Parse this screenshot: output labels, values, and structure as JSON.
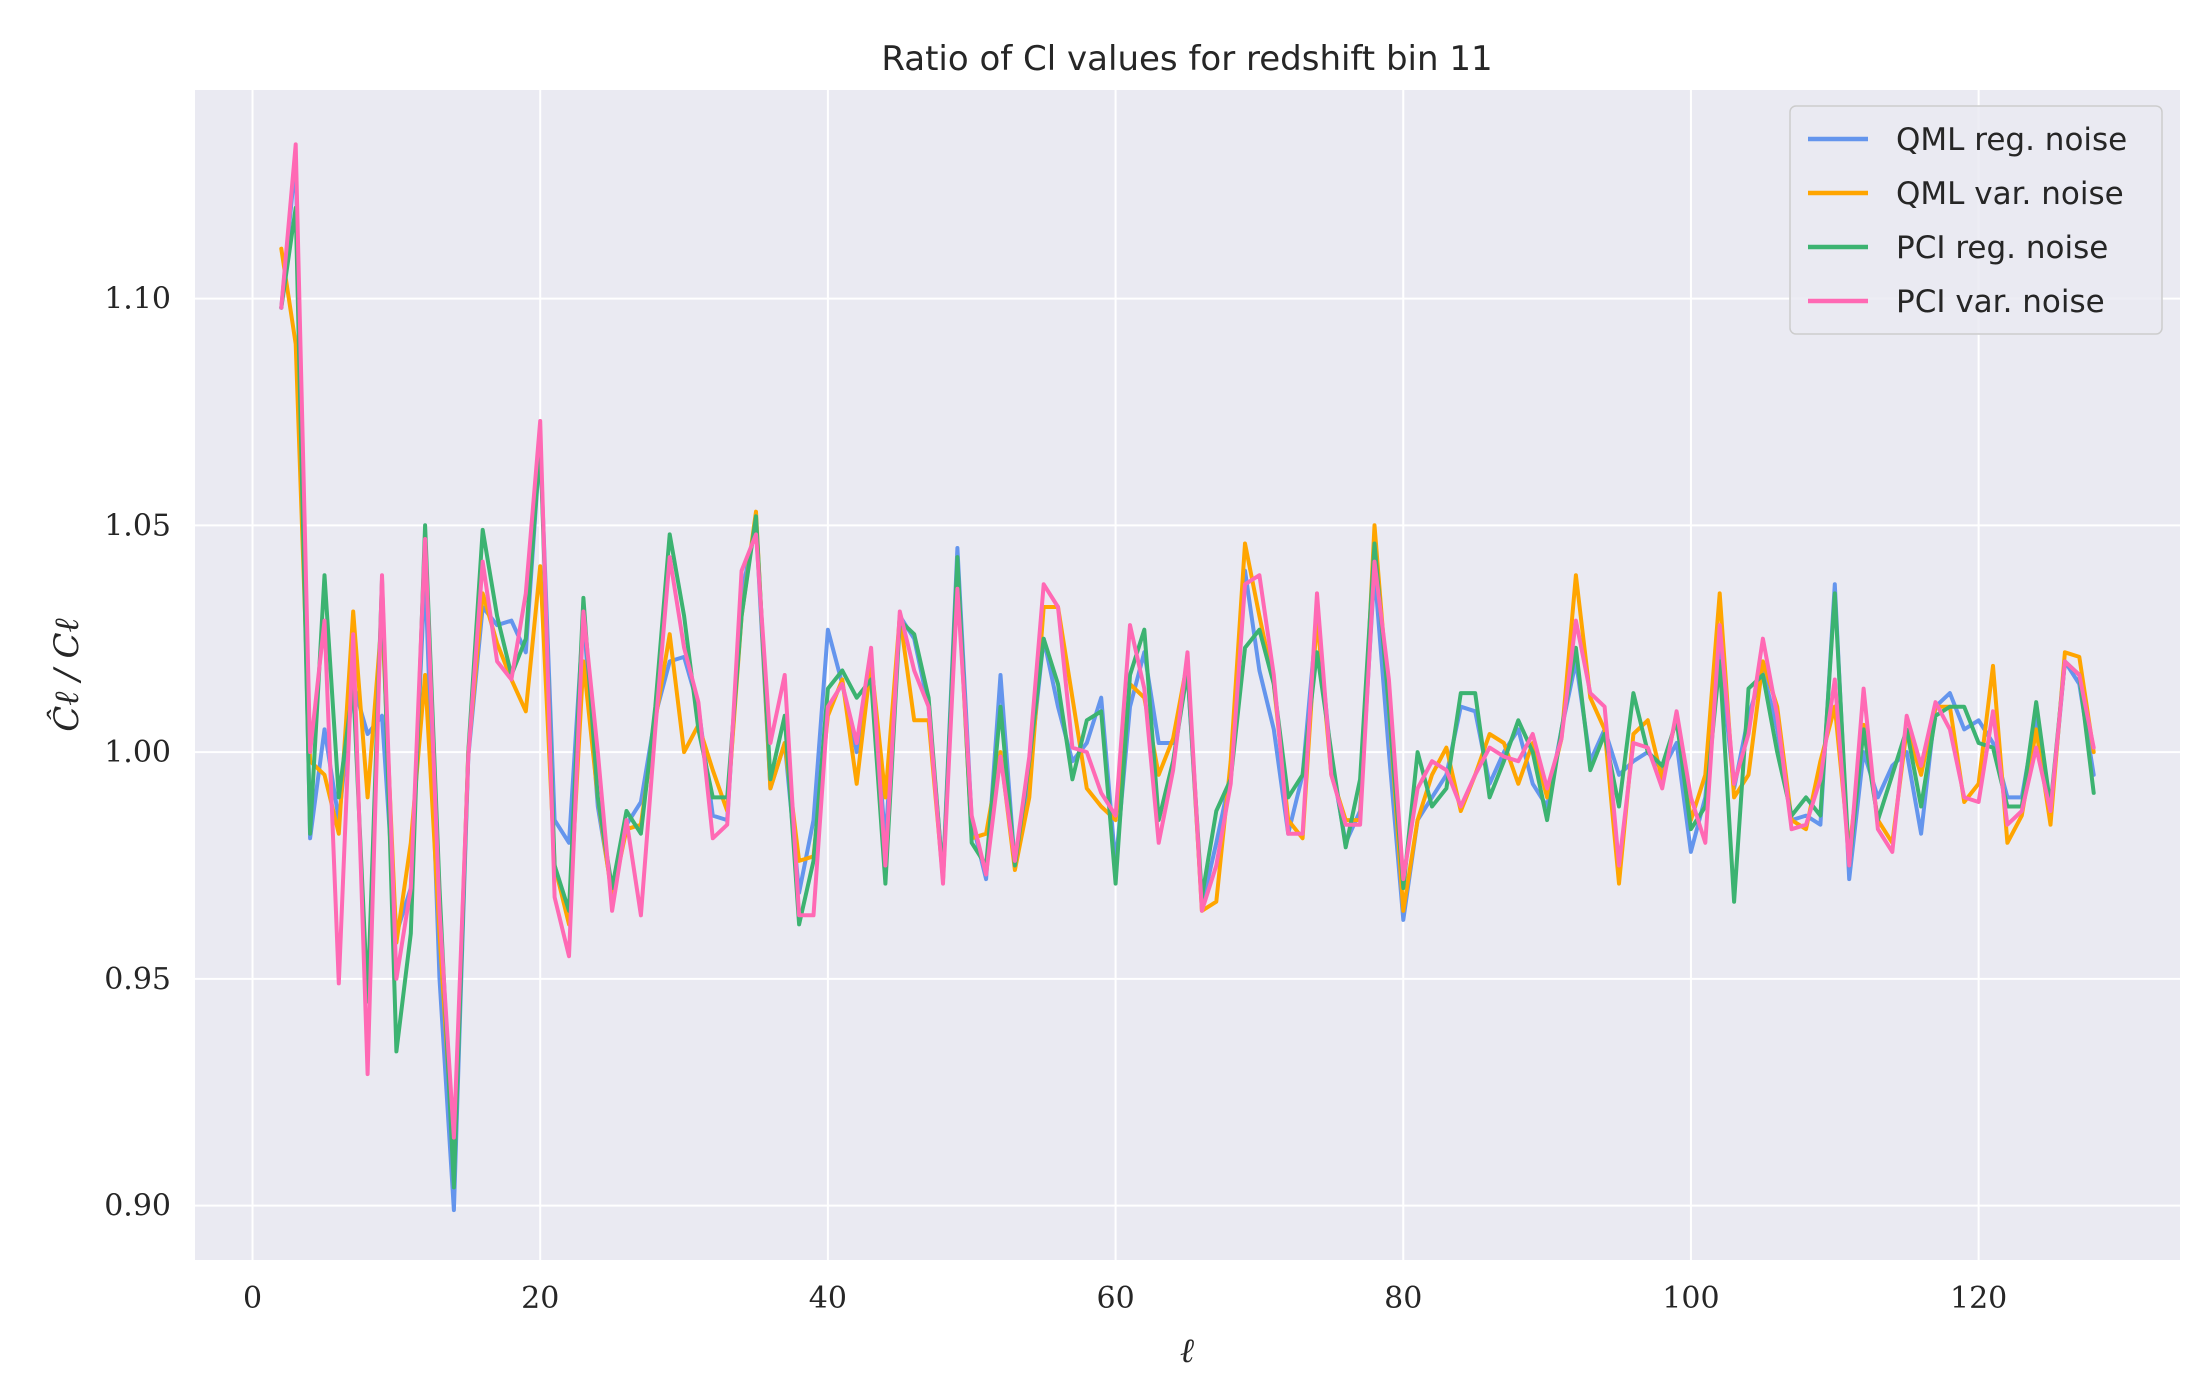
{
  "chart_data": {
    "type": "line",
    "title": "Ratio of Cl values for redshift bin 11",
    "xlabel": "ℓ",
    "ylabel": "Ĉℓ / Cℓ",
    "xlim": [
      -4,
      134
    ],
    "ylim": [
      0.888,
      1.146
    ],
    "xticks": [
      0,
      20,
      40,
      60,
      80,
      100,
      120
    ],
    "xtick_labels": [
      "0",
      "20",
      "40",
      "60",
      "80",
      "100",
      "120"
    ],
    "yticks": [
      0.9,
      0.95,
      1.0,
      1.05,
      1.1
    ],
    "ytick_labels": [
      "0.90",
      "0.95",
      "1.00",
      "1.05",
      "1.10"
    ],
    "grid": true,
    "legend_position": "top-right",
    "background_color": "#eaeaf2",
    "x": [
      2,
      3,
      4,
      5,
      6,
      7,
      8,
      9,
      10,
      11,
      12,
      13,
      14,
      15,
      16,
      17,
      18,
      19,
      20,
      21,
      22,
      23,
      24,
      25,
      26,
      27,
      28,
      29,
      30,
      31,
      32,
      33,
      34,
      35,
      36,
      37,
      38,
      39,
      40,
      41,
      42,
      43,
      44,
      45,
      46,
      47,
      48,
      49,
      50,
      51,
      52,
      53,
      54,
      55,
      56,
      57,
      58,
      59,
      60,
      61,
      62,
      63,
      64,
      65,
      66,
      67,
      68,
      69,
      70,
      71,
      72,
      73,
      74,
      75,
      76,
      77,
      78,
      79,
      80,
      81,
      82,
      83,
      84,
      85,
      86,
      87,
      88,
      89,
      90,
      91,
      92,
      93,
      94,
      95,
      96,
      97,
      98,
      99,
      100,
      101,
      102,
      103,
      104,
      105,
      106,
      107,
      108,
      109,
      110,
      111,
      112,
      113,
      114,
      115,
      116,
      117,
      118,
      119,
      120,
      121,
      122,
      123,
      124,
      125,
      126,
      127,
      128
    ],
    "series": [
      {
        "name": "QML reg. noise",
        "color": "#6495ed",
        "values": [
          1.098,
          1.131,
          0.981,
          1.005,
          0.985,
          1.015,
          1.004,
          1.008,
          0.96,
          0.97,
          1.04,
          0.95,
          0.899,
          0.999,
          1.032,
          1.028,
          1.029,
          1.022,
          1.068,
          0.985,
          0.98,
          1.03,
          0.988,
          0.969,
          0.984,
          0.989,
          1.008,
          1.02,
          1.021,
          1.01,
          0.986,
          0.985,
          1.035,
          1.05,
          0.992,
          1.002,
          0.969,
          0.985,
          1.027,
          1.015,
          1.0,
          1.02,
          0.98,
          1.03,
          1.025,
          1.01,
          0.973,
          1.045,
          0.985,
          0.972,
          1.017,
          0.975,
          0.995,
          1.025,
          1.01,
          0.998,
          1.002,
          1.012,
          0.975,
          1.01,
          1.022,
          1.002,
          1.002,
          1.018,
          0.966,
          0.98,
          0.995,
          1.04,
          1.018,
          1.005,
          0.982,
          0.995,
          1.03,
          0.998,
          0.98,
          0.987,
          1.04,
          1.0,
          0.963,
          0.985,
          0.99,
          0.995,
          1.01,
          1.009,
          0.993,
          1.0,
          1.005,
          0.993,
          0.988,
          1.005,
          1.02,
          0.998,
          1.005,
          0.995,
          0.998,
          1.0,
          0.996,
          1.002,
          0.978,
          0.99,
          1.022,
          0.992,
          1.008,
          1.018,
          1.005,
          0.985,
          0.986,
          0.984,
          1.037,
          0.972,
          1.0,
          0.99,
          0.997,
          1.0,
          0.982,
          1.01,
          1.013,
          1.005,
          1.007,
          1.002,
          0.99,
          0.99,
          1.008,
          0.986,
          1.02,
          1.015,
          0.995
        ]
      },
      {
        "name": "QML var. noise",
        "color": "#ffa500",
        "values": [
          1.111,
          1.09,
          0.998,
          0.995,
          0.982,
          1.031,
          0.99,
          1.03,
          0.958,
          0.98,
          1.017,
          0.96,
          0.91,
          1.0,
          1.035,
          1.024,
          1.016,
          1.009,
          1.041,
          0.975,
          0.962,
          1.02,
          0.99,
          0.968,
          0.983,
          0.984,
          1.007,
          1.026,
          1.0,
          1.006,
          0.996,
          0.987,
          1.03,
          1.053,
          0.992,
          1.002,
          0.976,
          0.977,
          1.008,
          1.016,
          0.993,
          1.02,
          0.99,
          1.03,
          1.007,
          1.007,
          0.972,
          1.04,
          0.981,
          0.982,
          1.0,
          0.974,
          0.99,
          1.032,
          1.032,
          1.012,
          0.992,
          0.988,
          0.985,
          1.015,
          1.012,
          0.995,
          1.003,
          1.02,
          0.965,
          0.967,
          0.998,
          1.046,
          1.03,
          1.015,
          0.985,
          0.981,
          1.03,
          0.995,
          0.985,
          0.985,
          1.05,
          1.01,
          0.965,
          0.985,
          0.995,
          1.001,
          0.987,
          0.995,
          1.004,
          1.002,
          0.993,
          1.002,
          0.99,
          1.003,
          1.039,
          1.012,
          1.005,
          0.971,
          1.004,
          1.007,
          0.994,
          1.008,
          0.985,
          0.995,
          1.035,
          0.99,
          0.995,
          1.02,
          1.01,
          0.985,
          0.983,
          0.998,
          1.01,
          0.978,
          1.006,
          0.985,
          0.98,
          1.005,
          0.995,
          1.01,
          1.01,
          0.989,
          0.993,
          1.019,
          0.98,
          0.986,
          1.005,
          0.984,
          1.022,
          1.021,
          1.0
        ]
      },
      {
        "name": "PCI reg. noise",
        "color": "#3cb371",
        "values": [
          1.098,
          1.12,
          0.982,
          1.039,
          0.99,
          1.015,
          0.945,
          1.038,
          0.934,
          0.96,
          1.05,
          0.97,
          0.904,
          1.0,
          1.049,
          1.03,
          1.017,
          1.025,
          1.068,
          0.975,
          0.965,
          1.034,
          0.99,
          0.97,
          0.987,
          0.982,
          1.01,
          1.048,
          1.03,
          1.005,
          0.99,
          0.99,
          1.03,
          1.052,
          0.994,
          1.008,
          0.962,
          0.976,
          1.014,
          1.018,
          1.012,
          1.016,
          0.971,
          1.029,
          1.026,
          1.012,
          0.972,
          1.043,
          0.98,
          0.975,
          1.01,
          0.975,
          0.998,
          1.025,
          1.015,
          0.994,
          1.007,
          1.009,
          0.971,
          1.017,
          1.027,
          0.985,
          0.998,
          1.018,
          0.968,
          0.987,
          0.994,
          1.023,
          1.027,
          1.015,
          0.99,
          0.995,
          1.022,
          1.0,
          0.979,
          0.994,
          1.046,
          1.01,
          0.97,
          1.0,
          0.988,
          0.992,
          1.013,
          1.013,
          0.99,
          0.998,
          1.007,
          1.0,
          0.985,
          1.005,
          1.023,
          0.996,
          1.004,
          0.988,
          1.013,
          1.0,
          0.997,
          1.007,
          0.983,
          0.988,
          1.02,
          0.967,
          1.014,
          1.017,
          1.0,
          0.986,
          0.99,
          0.986,
          1.035,
          0.975,
          1.005,
          0.985,
          0.995,
          1.005,
          0.988,
          1.008,
          1.01,
          1.01,
          1.002,
          1.001,
          0.988,
          0.988,
          1.011,
          0.988,
          1.02,
          1.017,
          0.991
        ]
      },
      {
        "name": "PCI var. noise",
        "color": "#ff69b4",
        "values": [
          1.098,
          1.134,
          1.0,
          1.029,
          0.949,
          1.026,
          0.929,
          1.039,
          0.95,
          0.97,
          1.047,
          0.965,
          0.915,
          0.999,
          1.042,
          1.02,
          1.016,
          1.035,
          1.073,
          0.968,
          0.955,
          1.031,
          1.0,
          0.965,
          0.985,
          0.964,
          1.005,
          1.043,
          1.023,
          1.011,
          0.981,
          0.984,
          1.04,
          1.048,
          1.002,
          1.017,
          0.964,
          0.964,
          1.01,
          1.015,
          1.002,
          1.023,
          0.975,
          1.031,
          1.018,
          1.01,
          0.971,
          1.036,
          0.986,
          0.973,
          0.999,
          0.976,
          0.999,
          1.037,
          1.032,
          1.001,
          1.0,
          0.991,
          0.986,
          1.028,
          1.014,
          0.98,
          0.996,
          1.022,
          0.965,
          0.975,
          0.993,
          1.037,
          1.039,
          1.017,
          0.982,
          0.982,
          1.035,
          0.995,
          0.984,
          0.984,
          1.042,
          1.016,
          0.972,
          0.992,
          0.998,
          0.996,
          0.988,
          0.995,
          1.001,
          0.999,
          0.998,
          1.004,
          0.992,
          1.003,
          1.029,
          1.013,
          1.01,
          0.975,
          1.002,
          1.001,
          0.992,
          1.009,
          0.99,
          0.98,
          1.028,
          0.993,
          1.004,
          1.025,
          1.008,
          0.983,
          0.984,
          0.994,
          1.016,
          0.975,
          1.014,
          0.983,
          0.978,
          1.008,
          0.997,
          1.011,
          1.005,
          0.99,
          0.989,
          1.009,
          0.984,
          0.987,
          1.001,
          0.987,
          1.02,
          1.017,
          1.001
        ]
      }
    ]
  }
}
